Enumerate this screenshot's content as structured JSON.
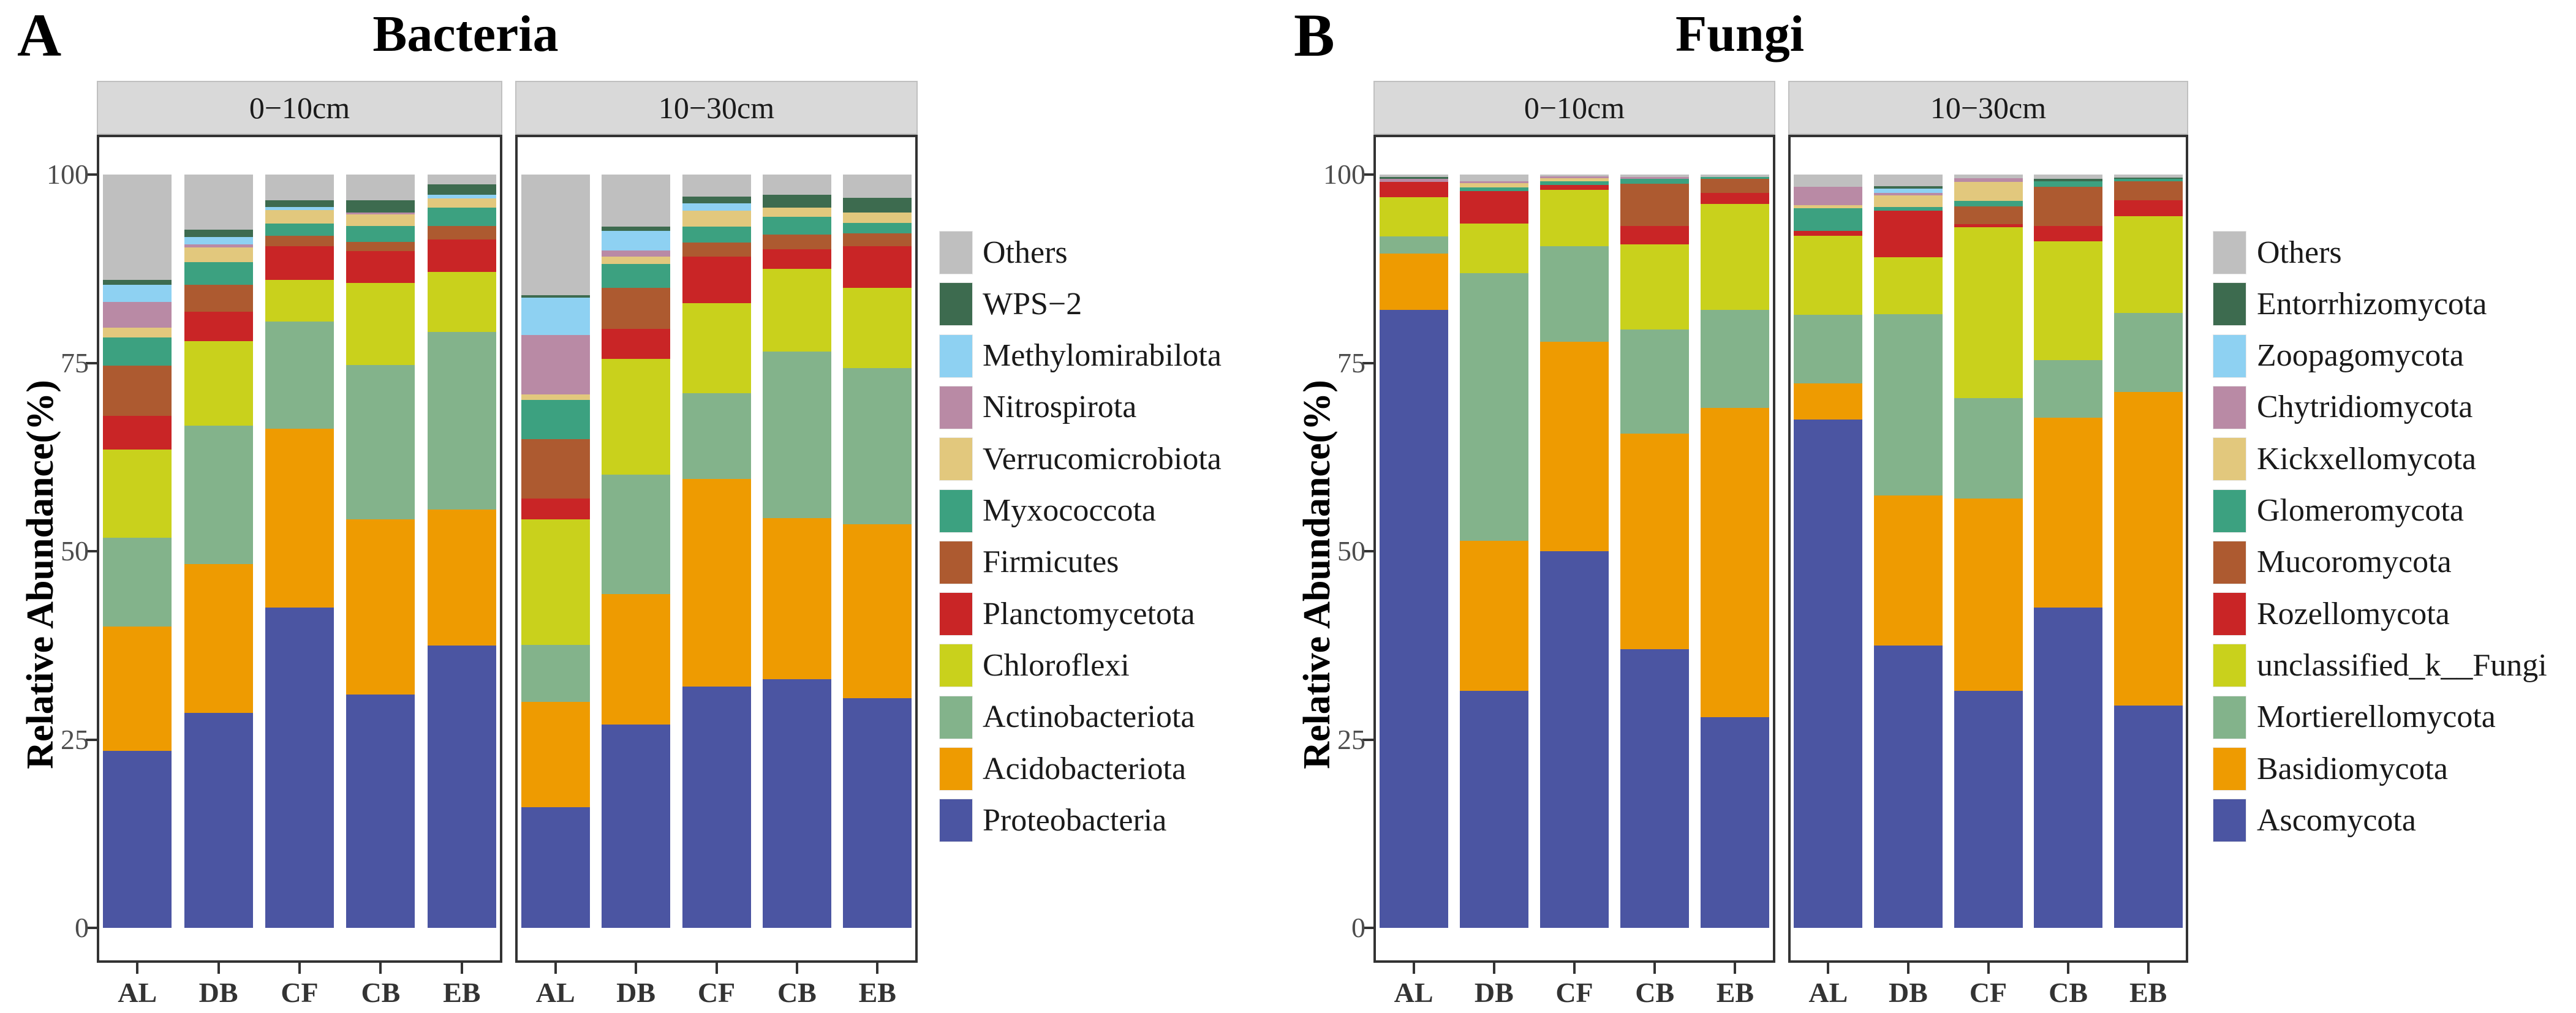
{
  "figure": {
    "background": "#ffffff",
    "axis_color": "#333333",
    "tick_label_color": "#4d4d4d",
    "strip_background": "#d9d9d9"
  },
  "chart_data": [
    {
      "type": "bar",
      "stacked": true,
      "panel_label": "A",
      "title": "Bacteria",
      "ylabel": "Relative Abundance(%)",
      "ylim": [
        0,
        100
      ],
      "yticks": [
        0,
        25,
        50,
        75,
        100
      ],
      "facets": [
        "0−10cm",
        "10−30cm"
      ],
      "categories": [
        "AL",
        "DB",
        "CF",
        "CB",
        "EB"
      ],
      "legend_title": "",
      "legend_top_to_bottom": [
        "Others",
        "WPS−2",
        "Methylomirabilota",
        "Nitrospirota",
        "Verrucomicrobiota",
        "Myxococcota",
        "Firmicutes",
        "Planctomycetota",
        "Chloroflexi",
        "Actinobacteriota",
        "Acidobacteriota",
        "Proteobacteria"
      ],
      "series": [
        {
          "name": "Proteobacteria",
          "color": "#4b55a2",
          "values": [
            [
              23.5,
              28.5,
              42.5,
              31.0,
              37.5
            ],
            [
              16.0,
              27.0,
              32.0,
              33.0,
              30.5
            ]
          ]
        },
        {
          "name": "Acidobacteriota",
          "color": "#ee9b01",
          "values": [
            [
              16.5,
              19.8,
              23.8,
              23.2,
              18.0
            ],
            [
              14.0,
              17.3,
              27.6,
              21.4,
              23.1
            ]
          ]
        },
        {
          "name": "Actinobacteriota",
          "color": "#83b38b",
          "values": [
            [
              11.8,
              18.4,
              14.2,
              20.5,
              23.6
            ],
            [
              7.6,
              15.9,
              11.4,
              22.1,
              20.7
            ]
          ]
        },
        {
          "name": "Chloroflexi",
          "color": "#c9d11c",
          "values": [
            [
              11.7,
              11.2,
              5.5,
              10.9,
              8.0
            ],
            [
              16.6,
              15.3,
              11.9,
              11.0,
              10.7
            ]
          ]
        },
        {
          "name": "Planctomycetota",
          "color": "#c92526",
          "values": [
            [
              4.5,
              3.9,
              4.5,
              4.2,
              4.3
            ],
            [
              2.8,
              4.0,
              6.2,
              2.6,
              5.5
            ]
          ]
        },
        {
          "name": "Firmicutes",
          "color": "#ad5a30",
          "values": [
            [
              6.6,
              3.6,
              1.4,
              1.3,
              1.8
            ],
            [
              7.9,
              5.5,
              1.9,
              1.9,
              1.7
            ]
          ]
        },
        {
          "name": "Myxococcota",
          "color": "#3ca180",
          "values": [
            [
              3.8,
              3.0,
              1.6,
              2.1,
              2.4
            ],
            [
              5.2,
              3.1,
              2.1,
              2.4,
              1.4
            ]
          ]
        },
        {
          "name": "Verrucomicrobiota",
          "color": "#e2c87d",
          "values": [
            [
              1.3,
              1.9,
              1.8,
              1.5,
              1.2
            ],
            [
              0.7,
              1.0,
              2.1,
              1.2,
              1.4
            ]
          ]
        },
        {
          "name": "Nitrospirota",
          "color": "#b98aa5",
          "values": [
            [
              3.4,
              0.4,
              0.0,
              0.3,
              0.0
            ],
            [
              7.9,
              0.8,
              0.0,
              0.0,
              0.0
            ]
          ]
        },
        {
          "name": "Methylomirabilota",
          "color": "#8ed1f2",
          "values": [
            [
              2.3,
              1.0,
              0.4,
              0.0,
              0.5
            ],
            [
              5.0,
              2.6,
              1.0,
              0.0,
              0.0
            ]
          ]
        },
        {
          "name": "WPS−2",
          "color": "#3d6b4f",
          "values": [
            [
              0.6,
              1.0,
              0.9,
              1.6,
              1.4
            ],
            [
              0.3,
              0.6,
              0.9,
              1.7,
              1.9
            ]
          ]
        },
        {
          "name": "Others",
          "color": "#bfbfbf",
          "values": [
            [
              14.0,
              7.3,
              3.4,
              3.4,
              1.3
            ],
            [
              16.0,
              6.9,
              2.9,
              2.7,
              3.1
            ]
          ]
        }
      ]
    },
    {
      "type": "bar",
      "stacked": true,
      "panel_label": "B",
      "title": "Fungi",
      "ylabel": "Relative Abundance(%)",
      "ylim": [
        0,
        100
      ],
      "yticks": [
        0,
        25,
        50,
        75,
        100
      ],
      "facets": [
        "0−10cm",
        "10−30cm"
      ],
      "categories": [
        "AL",
        "DB",
        "CF",
        "CB",
        "EB"
      ],
      "legend_title": "",
      "legend_top_to_bottom": [
        "Others",
        "Entorrhizomycota",
        "Zoopagomycota",
        "Chytridiomycota",
        "Kickxellomycota",
        "Glomeromycota",
        "Mucoromycota",
        "Rozellomycota",
        "unclassified_k__Fungi",
        "Mortierellomycota",
        "Basidiomycota",
        "Ascomycota"
      ],
      "series": [
        {
          "name": "Ascomycota",
          "color": "#4b55a2",
          "values": [
            [
              82.0,
              31.5,
              50.0,
              37.0,
              28.0
            ],
            [
              67.5,
              37.5,
              31.5,
              42.5,
              29.5
            ]
          ]
        },
        {
          "name": "Basidiomycota",
          "color": "#ee9b01",
          "values": [
            [
              7.5,
              19.9,
              27.8,
              28.6,
              41.0
            ],
            [
              4.8,
              19.9,
              25.5,
              25.2,
              41.6
            ]
          ]
        },
        {
          "name": "Mortierellomycota",
          "color": "#83b38b",
          "values": [
            [
              2.3,
              35.5,
              12.7,
              13.8,
              13.0
            ],
            [
              9.1,
              24.1,
              13.3,
              7.7,
              10.5
            ]
          ]
        },
        {
          "name": "unclassified_k__Fungi",
          "color": "#c9d11c",
          "values": [
            [
              5.2,
              6.6,
              7.5,
              11.3,
              14.1
            ],
            [
              10.5,
              7.5,
              22.7,
              15.7,
              12.9
            ]
          ]
        },
        {
          "name": "Rozellomycota",
          "color": "#c92526",
          "values": [
            [
              2.0,
              4.3,
              0.6,
              2.5,
              1.5
            ],
            [
              0.6,
              6.2,
              0.4,
              2.1,
              2.1
            ]
          ]
        },
        {
          "name": "Mucoromycota",
          "color": "#ad5a30",
          "values": [
            [
              0.0,
              0.0,
              0.0,
              5.6,
              1.8
            ],
            [
              0.0,
              0.0,
              2.4,
              5.2,
              2.5
            ]
          ]
        },
        {
          "name": "Glomeromycota",
          "color": "#3ca180",
          "values": [
            [
              0.0,
              0.5,
              0.5,
              0.6,
              0.3
            ],
            [
              3.0,
              0.5,
              0.7,
              0.7,
              0.3
            ]
          ]
        },
        {
          "name": "Kickxellomycota",
          "color": "#e2c87d",
          "values": [
            [
              0.0,
              0.6,
              0.4,
              0.0,
              0.0
            ],
            [
              0.4,
              1.5,
              2.5,
              0.0,
              0.0
            ]
          ]
        },
        {
          "name": "Chytridiomycota",
          "color": "#b98aa5",
          "values": [
            [
              0.4,
              0.2,
              0.3,
              0.3,
              0.0
            ],
            [
              2.5,
              0.4,
              0.5,
              0.0,
              0.0
            ]
          ]
        },
        {
          "name": "Zoopagomycota",
          "color": "#8ed1f2",
          "values": [
            [
              0.0,
              0.0,
              0.0,
              0.0,
              0.0
            ],
            [
              0.0,
              0.5,
              0.0,
              0.0,
              0.0
            ]
          ]
        },
        {
          "name": "Entorrhizomycota",
          "color": "#3d6b4f",
          "values": [
            [
              0.3,
              0.0,
              0.0,
              0.0,
              0.0
            ],
            [
              0.0,
              0.4,
              0.0,
              0.3,
              0.2
            ]
          ]
        },
        {
          "name": "Others",
          "color": "#bfbfbf",
          "values": [
            [
              0.3,
              0.9,
              0.2,
              0.3,
              0.3
            ],
            [
              1.6,
              1.5,
              0.5,
              0.6,
              0.4
            ]
          ]
        }
      ]
    }
  ]
}
